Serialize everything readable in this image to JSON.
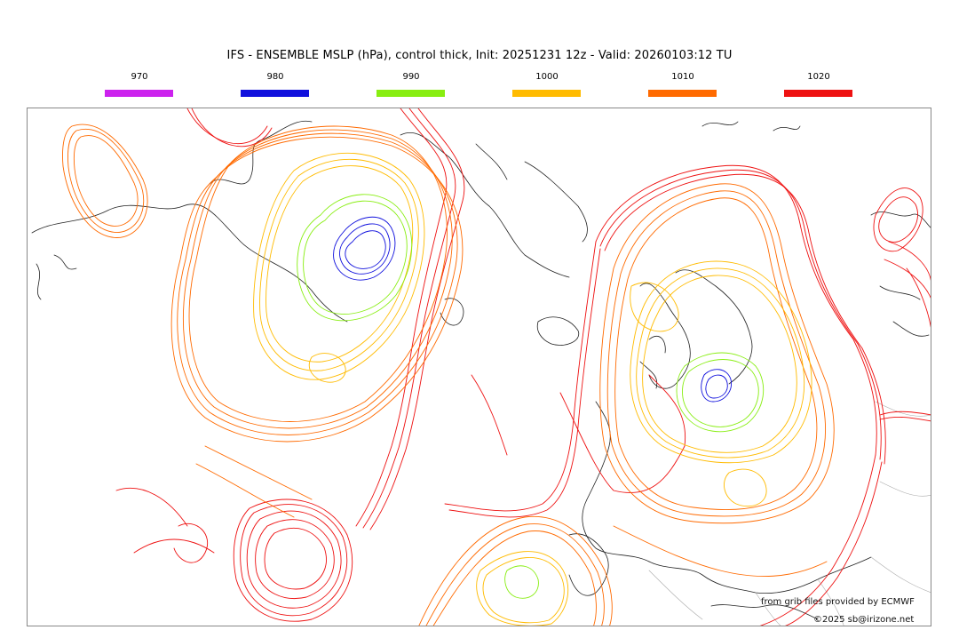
{
  "title": "IFS - ENSEMBLE MSLP (hPa), control thick, Init: 20251231 12z - Valid: 20260103:12 TU",
  "legend": [
    {
      "label": "970",
      "color": "#cc22ee"
    },
    {
      "label": "980",
      "color": "#1010dd"
    },
    {
      "label": "990",
      "color": "#88ee11"
    },
    {
      "label": "1000",
      "color": "#ffbb00"
    },
    {
      "label": "1010",
      "color": "#ff6a00"
    },
    {
      "label": "1020",
      "color": "#ee1111"
    }
  ],
  "credits": {
    "source": "from grib files provided by ECMWF",
    "copyright": "©2025 sb@irizone.net"
  },
  "map": {
    "icons": [
      "isobar-map",
      "coastline"
    ]
  }
}
